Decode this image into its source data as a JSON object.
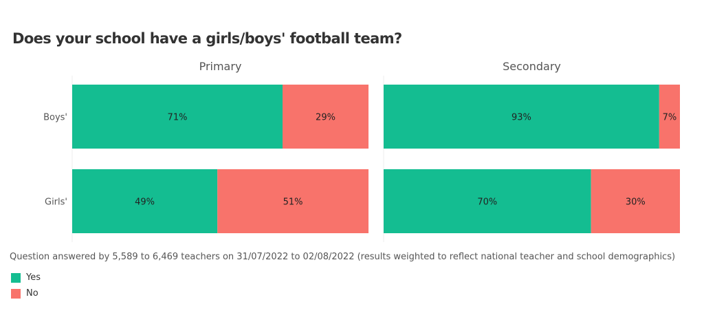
{
  "chart_data": {
    "type": "bar",
    "orientation": "horizontal",
    "stacked": true,
    "title": "Does your school have a girls/boys' football team?",
    "categories": [
      "Boys'",
      "Girls'"
    ],
    "panels": [
      {
        "title": "Primary",
        "series": [
          {
            "name": "Yes",
            "values": [
              71,
              49
            ]
          },
          {
            "name": "No",
            "values": [
              29,
              51
            ]
          }
        ]
      },
      {
        "title": "Secondary",
        "series": [
          {
            "name": "Yes",
            "values": [
              93,
              70
            ]
          },
          {
            "name": "No",
            "values": [
              7,
              30
            ]
          }
        ]
      }
    ],
    "xlim": [
      0,
      100
    ],
    "value_suffix": "%",
    "legend": "bottom-left",
    "colors": {
      "Yes": "#14bd91",
      "No": "#f8736b"
    },
    "note": "Question answered by 5,589 to 6,469 teachers on 31/07/2022 to 02/08/2022 (results weighted to reflect national teacher and school demographics)"
  }
}
